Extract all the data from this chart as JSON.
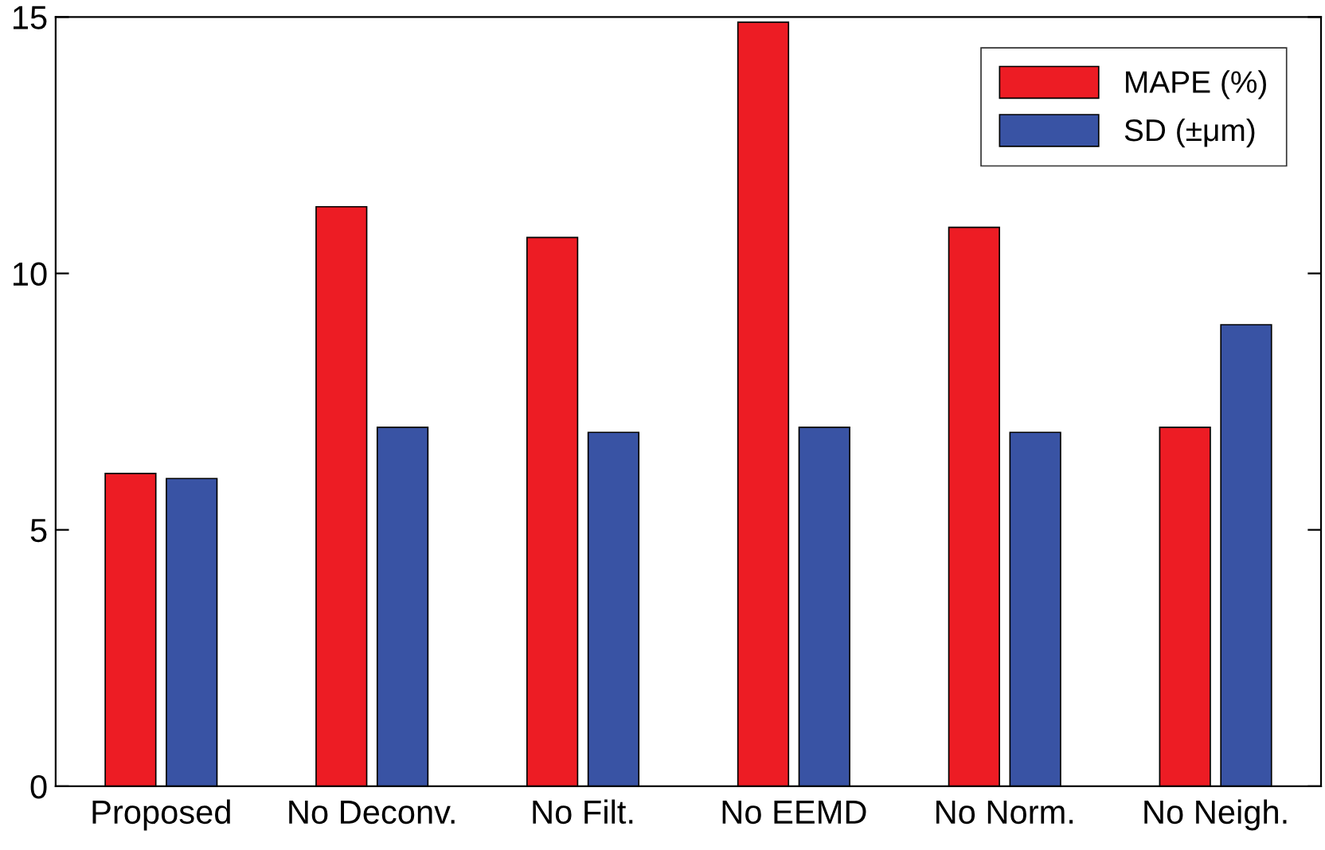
{
  "chart_data": {
    "type": "bar",
    "categories": [
      "Proposed",
      "No Deconv.",
      "No Filt.",
      "No EEMD",
      "No Norm.",
      "No Neigh."
    ],
    "series": [
      {
        "name": "MAPE (%)",
        "color": "#ed1c24",
        "values": [
          6.1,
          11.3,
          10.7,
          14.9,
          10.9,
          7.0
        ]
      },
      {
        "name": "SD (±μm)",
        "color": "#3953a4",
        "values": [
          6.0,
          7.0,
          6.9,
          7.0,
          6.9,
          9.0
        ]
      }
    ],
    "ylim": [
      0,
      15
    ],
    "yticks": [
      0,
      5,
      10,
      15
    ],
    "grid": false,
    "legend": "top right"
  }
}
